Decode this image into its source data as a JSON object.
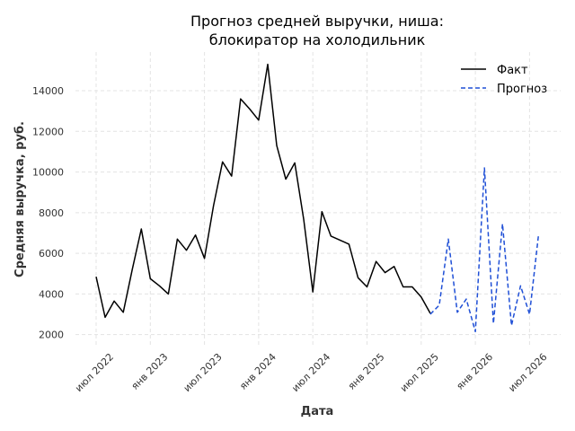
{
  "chart_data": {
    "type": "line",
    "title_line1": "Прогноз средней выручки, ниша:",
    "title_line2": "блокиратор на холодильник",
    "xlabel": "Дата",
    "ylabel": "Средняя выручка, руб.",
    "ylim": [
      1500,
      15900
    ],
    "yticks": [
      2000,
      4000,
      6000,
      8000,
      10000,
      12000,
      14000
    ],
    "xticks": [
      {
        "date": "2022-07",
        "label": "июл 2022"
      },
      {
        "date": "2023-01",
        "label": "янв 2023"
      },
      {
        "date": "2023-07",
        "label": "июл 2023"
      },
      {
        "date": "2024-01",
        "label": "янв 2024"
      },
      {
        "date": "2024-07",
        "label": "июл 2024"
      },
      {
        "date": "2025-01",
        "label": "янв 2025"
      },
      {
        "date": "2025-07",
        "label": "июл 2025"
      },
      {
        "date": "2026-01",
        "label": "янв 2026"
      },
      {
        "date": "2026-07",
        "label": "июл 2026"
      }
    ],
    "grid": true,
    "legend_position": "top-right",
    "series": [
      {
        "name": "Факт",
        "color": "#000000",
        "style": "solid",
        "x": [
          "2022-07",
          "2022-08",
          "2022-09",
          "2022-10",
          "2022-11",
          "2022-12",
          "2023-01",
          "2023-02",
          "2023-03",
          "2023-04",
          "2023-05",
          "2023-06",
          "2023-07",
          "2023-08",
          "2023-09",
          "2023-10",
          "2023-11",
          "2023-12",
          "2024-01",
          "2024-02",
          "2024-03",
          "2024-04",
          "2024-05",
          "2024-06",
          "2024-07",
          "2024-08",
          "2024-09",
          "2024-10",
          "2024-11",
          "2024-12",
          "2025-01",
          "2025-02",
          "2025-03",
          "2025-04",
          "2025-05",
          "2025-06",
          "2025-07",
          "2025-08"
        ],
        "y": [
          4850,
          2850,
          3650,
          3100,
          5200,
          7200,
          4750,
          4400,
          4000,
          6700,
          6150,
          6900,
          5750,
          8350,
          10500,
          9800,
          13600,
          13100,
          12550,
          15300,
          11300,
          9650,
          10450,
          7650,
          4100,
          8050,
          6850,
          6650,
          6450,
          4800,
          4350,
          5600,
          5050,
          5350,
          4350,
          4350,
          3850,
          3050
        ]
      },
      {
        "name": "Прогноз",
        "color": "#1f4fd6",
        "style": "dashed",
        "x": [
          "2025-08",
          "2025-09",
          "2025-10",
          "2025-11",
          "2025-12",
          "2026-01",
          "2026-02",
          "2026-03",
          "2026-04",
          "2026-05",
          "2026-06",
          "2026-07",
          "2026-08"
        ],
        "y": [
          3000,
          3450,
          6700,
          3100,
          3750,
          2150,
          10200,
          2550,
          7450,
          2450,
          4400,
          3000,
          6950
        ]
      }
    ]
  }
}
